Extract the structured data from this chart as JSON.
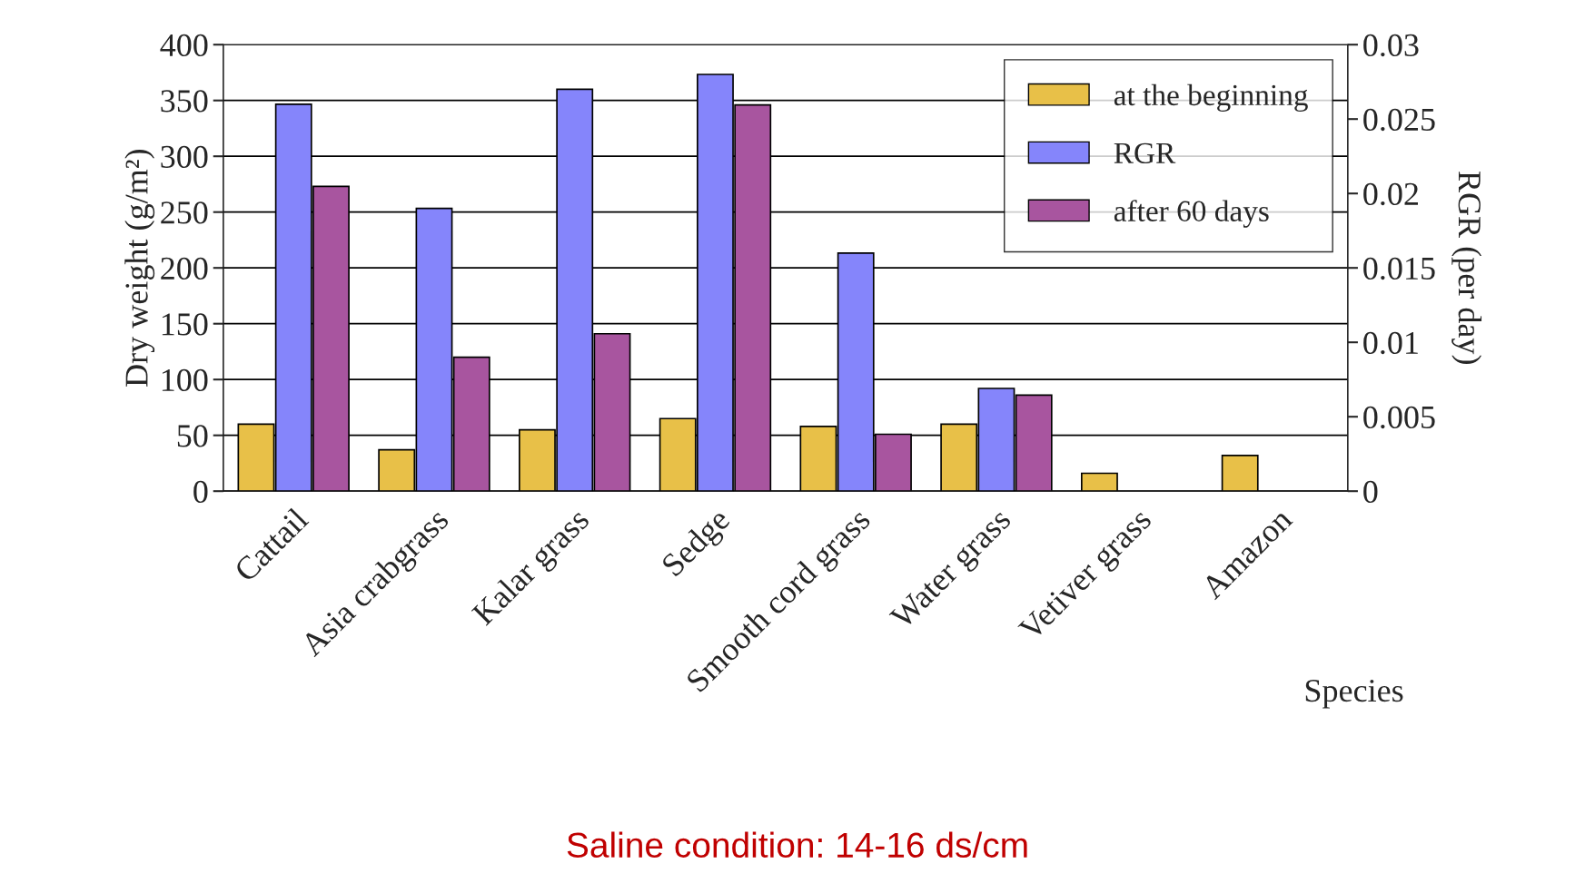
{
  "chart_data": {
    "type": "bar",
    "ylabel": "Dry weight (g/m²)",
    "y2label": "RGR (per day)",
    "xlabel": "Species",
    "categories": [
      "Cattail",
      "Asia crabgrass",
      "Kalar grass",
      "Sedge",
      "Smooth cord grass",
      "Water grass",
      "Vetiver grass",
      "Amazon"
    ],
    "series": [
      {
        "name": "at the beginning",
        "color": "#e8c048",
        "values": [
          60,
          37,
          55,
          65,
          58,
          60,
          16,
          32
        ]
      },
      {
        "name": "RGR",
        "color": "#8585fb",
        "axis": "y2",
        "values": [
          0.026,
          0.019,
          0.027,
          0.028,
          0.016,
          0.0069,
          null,
          null
        ]
      },
      {
        "name": "after 60 days",
        "color": "#a8559f",
        "values": [
          273,
          120,
          141,
          346,
          51,
          86,
          null,
          null
        ]
      }
    ],
    "ylim": [
      0,
      400
    ],
    "yticks": [
      0,
      50,
      100,
      150,
      200,
      250,
      300,
      350,
      400
    ],
    "y2lim": [
      0,
      0.03
    ],
    "y2ticks": [
      0,
      0.005,
      0.01,
      0.015,
      0.02,
      0.025,
      0.03
    ],
    "grid": "y",
    "legend": "top right",
    "annotations": [
      "Saline condition: 14-16 ds/cm"
    ]
  }
}
